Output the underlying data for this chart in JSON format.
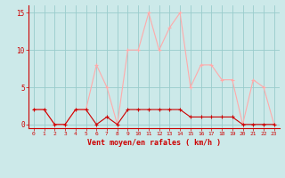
{
  "hours": [
    0,
    1,
    2,
    3,
    4,
    5,
    6,
    7,
    8,
    9,
    10,
    11,
    12,
    13,
    14,
    15,
    16,
    17,
    18,
    19,
    20,
    21,
    22,
    23
  ],
  "wind_avg": [
    2,
    2,
    0,
    0,
    2,
    2,
    0,
    1,
    0,
    2,
    2,
    2,
    2,
    2,
    2,
    1,
    1,
    1,
    1,
    1,
    0,
    0,
    0,
    0
  ],
  "wind_gust": [
    2,
    2,
    0,
    0,
    2,
    2,
    8,
    5,
    0,
    10,
    10,
    15,
    10,
    13,
    15,
    5,
    8,
    8,
    6,
    6,
    0,
    6,
    5,
    0
  ],
  "bg_color": "#cce9e9",
  "grid_color": "#99cccc",
  "line_avg_color": "#cc0000",
  "line_gust_color": "#ffaaaa",
  "axis_color": "#cc0000",
  "tick_color": "#cc0000",
  "xlabel": "Vent moyen/en rafales ( km/h )",
  "yticks": [
    0,
    5,
    10,
    15
  ],
  "ylim": [
    -0.5,
    16
  ],
  "xlim": [
    -0.5,
    23.5
  ]
}
